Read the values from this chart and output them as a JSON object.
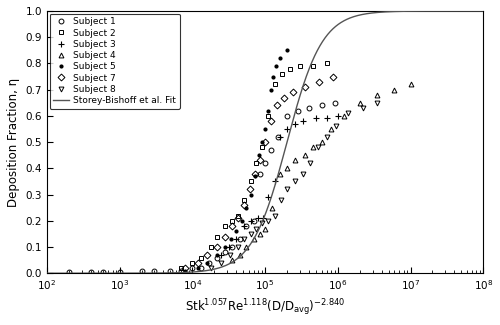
{
  "title": "",
  "xlabel_parts": [
    "Stk",
    "1.057",
    "Re",
    "1.118",
    "(D/D",
    "avg",
    ")",
    "-2.840"
  ],
  "ylabel": "Deposition Fraction, η",
  "xlim_log": [
    2,
    8
  ],
  "ylim": [
    0,
    1.0
  ],
  "yticks": [
    0,
    0.1,
    0.2,
    0.3,
    0.4,
    0.5,
    0.6,
    0.7,
    0.8,
    0.9,
    1.0
  ],
  "fit_params": {
    "A": 150000,
    "B": 1.8
  },
  "subjects": {
    "Subject 1": {
      "marker": "o",
      "data": [
        [
          200,
          0.005
        ],
        [
          400,
          0.005
        ],
        [
          600,
          0.005
        ],
        [
          1000,
          0.005
        ],
        [
          2000,
          0.01
        ],
        [
          3000,
          0.01
        ],
        [
          5000,
          0.01
        ],
        [
          7000,
          0.01
        ],
        [
          10000,
          0.02
        ],
        [
          13000,
          0.02
        ],
        [
          17000,
          0.04
        ],
        [
          22000,
          0.06
        ],
        [
          28000,
          0.08
        ],
        [
          35000,
          0.1
        ],
        [
          45000,
          0.13
        ],
        [
          55000,
          0.18
        ],
        [
          70000,
          0.2
        ],
        [
          85000,
          0.38
        ],
        [
          100000,
          0.42
        ],
        [
          120000,
          0.47
        ],
        [
          150000,
          0.52
        ],
        [
          200000,
          0.6
        ],
        [
          280000,
          0.62
        ],
        [
          400000,
          0.63
        ],
        [
          600000,
          0.64
        ],
        [
          900000,
          0.65
        ]
      ]
    },
    "Subject 2": {
      "marker": "s",
      "data": [
        [
          7000,
          0.02
        ],
        [
          10000,
          0.04
        ],
        [
          13000,
          0.06
        ],
        [
          18000,
          0.1
        ],
        [
          22000,
          0.14
        ],
        [
          28000,
          0.18
        ],
        [
          35000,
          0.2
        ],
        [
          43000,
          0.22
        ],
        [
          52000,
          0.28
        ],
        [
          63000,
          0.35
        ],
        [
          75000,
          0.42
        ],
        [
          90000,
          0.48
        ],
        [
          110000,
          0.6
        ],
        [
          135000,
          0.72
        ],
        [
          170000,
          0.76
        ],
        [
          220000,
          0.78
        ],
        [
          300000,
          0.79
        ],
        [
          450000,
          0.79
        ],
        [
          700000,
          0.8
        ]
      ]
    },
    "Subject 3": {
      "marker": "+",
      "data": [
        [
          25000,
          0.07
        ],
        [
          32000,
          0.1
        ],
        [
          40000,
          0.13
        ],
        [
          52000,
          0.18
        ],
        [
          65000,
          0.2
        ],
        [
          80000,
          0.21
        ],
        [
          95000,
          0.21
        ],
        [
          110000,
          0.29
        ],
        [
          135000,
          0.35
        ],
        [
          160000,
          0.52
        ],
        [
          200000,
          0.55
        ],
        [
          260000,
          0.57
        ],
        [
          330000,
          0.58
        ],
        [
          500000,
          0.59
        ],
        [
          700000,
          0.59
        ],
        [
          1000000,
          0.6
        ]
      ]
    },
    "Subject 4": {
      "marker": "^",
      "data": [
        [
          35000,
          0.05
        ],
        [
          45000,
          0.07
        ],
        [
          55000,
          0.1
        ],
        [
          70000,
          0.13
        ],
        [
          85000,
          0.15
        ],
        [
          100000,
          0.17
        ],
        [
          125000,
          0.25
        ],
        [
          160000,
          0.38
        ],
        [
          200000,
          0.4
        ],
        [
          260000,
          0.43
        ],
        [
          350000,
          0.45
        ],
        [
          450000,
          0.48
        ],
        [
          600000,
          0.5
        ],
        [
          800000,
          0.55
        ],
        [
          1200000,
          0.6
        ],
        [
          2000000,
          0.65
        ],
        [
          3500000,
          0.68
        ],
        [
          6000000,
          0.7
        ],
        [
          10000000,
          0.72
        ]
      ]
    },
    "Subject 5": {
      "marker": ".",
      "data": [
        [
          8000,
          0.01
        ],
        [
          12000,
          0.02
        ],
        [
          16000,
          0.04
        ],
        [
          22000,
          0.07
        ],
        [
          28000,
          0.1
        ],
        [
          34000,
          0.13
        ],
        [
          40000,
          0.16
        ],
        [
          48000,
          0.2
        ],
        [
          55000,
          0.25
        ],
        [
          63000,
          0.3
        ],
        [
          72000,
          0.37
        ],
        [
          82000,
          0.45
        ],
        [
          90000,
          0.5
        ],
        [
          100000,
          0.55
        ],
        [
          110000,
          0.62
        ],
        [
          120000,
          0.7
        ],
        [
          130000,
          0.75
        ],
        [
          140000,
          0.79
        ],
        [
          160000,
          0.82
        ],
        [
          200000,
          0.85
        ]
      ]
    },
    "Subject 7": {
      "marker": "D",
      "data": [
        [
          8000,
          0.02
        ],
        [
          12000,
          0.04
        ],
        [
          16000,
          0.07
        ],
        [
          22000,
          0.1
        ],
        [
          28000,
          0.14
        ],
        [
          35000,
          0.18
        ],
        [
          43000,
          0.21
        ],
        [
          52000,
          0.26
        ],
        [
          62000,
          0.32
        ],
        [
          73000,
          0.38
        ],
        [
          85000,
          0.43
        ],
        [
          100000,
          0.5
        ],
        [
          120000,
          0.58
        ],
        [
          145000,
          0.64
        ],
        [
          180000,
          0.67
        ],
        [
          240000,
          0.69
        ],
        [
          350000,
          0.71
        ],
        [
          550000,
          0.73
        ],
        [
          850000,
          0.75
        ]
      ]
    },
    "Subject 8": {
      "marker": "v",
      "data": [
        [
          18000,
          0.02
        ],
        [
          25000,
          0.04
        ],
        [
          33000,
          0.07
        ],
        [
          42000,
          0.1
        ],
        [
          52000,
          0.13
        ],
        [
          63000,
          0.15
        ],
        [
          75000,
          0.17
        ],
        [
          90000,
          0.19
        ],
        [
          110000,
          0.2
        ],
        [
          135000,
          0.22
        ],
        [
          165000,
          0.28
        ],
        [
          200000,
          0.32
        ],
        [
          260000,
          0.35
        ],
        [
          330000,
          0.38
        ],
        [
          420000,
          0.42
        ],
        [
          540000,
          0.48
        ],
        [
          700000,
          0.52
        ],
        [
          950000,
          0.56
        ],
        [
          1400000,
          0.61
        ],
        [
          2200000,
          0.63
        ],
        [
          3500000,
          0.65
        ]
      ]
    }
  },
  "fit_color": "#555555",
  "marker_color": "#000000",
  "background": "#ffffff"
}
